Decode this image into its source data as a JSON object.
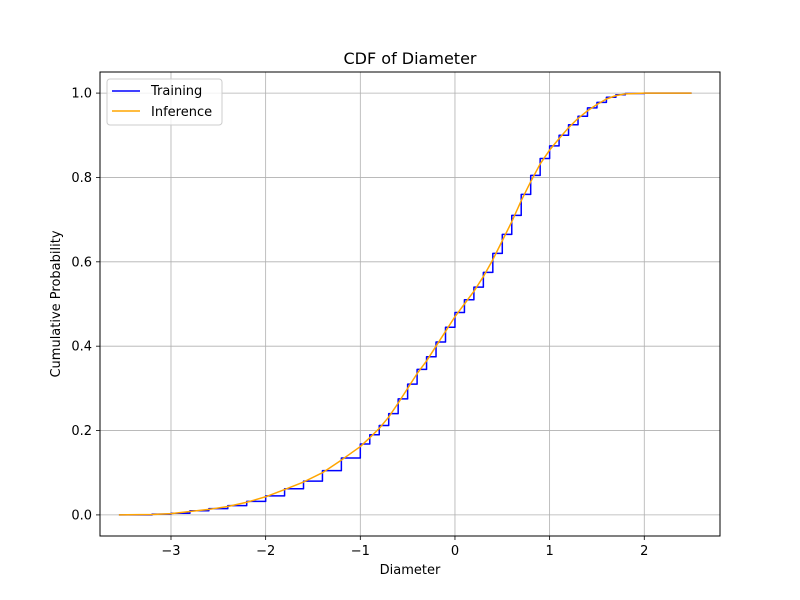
{
  "chart_data": {
    "type": "line",
    "title": "CDF of Diameter",
    "xlabel": "Diameter",
    "ylabel": "Cumulative Probability",
    "xlim": [
      -3.75,
      2.8
    ],
    "ylim": [
      -0.05,
      1.05
    ],
    "xticks": [
      -3,
      -2,
      -1,
      0,
      1,
      2
    ],
    "xtick_labels": [
      "−3",
      "−2",
      "−1",
      "0",
      "1",
      "2"
    ],
    "yticks": [
      0.0,
      0.2,
      0.4,
      0.6,
      0.8,
      1.0
    ],
    "ytick_labels": [
      "0.0",
      "0.2",
      "0.4",
      "0.6",
      "0.8",
      "1.0"
    ],
    "grid": true,
    "legend_position": "top-left",
    "series": [
      {
        "name": "Training",
        "color": "#0000ff",
        "step": true,
        "x": [
          -3.55,
          -3.2,
          -3.0,
          -2.8,
          -2.6,
          -2.4,
          -2.2,
          -2.0,
          -1.8,
          -1.6,
          -1.4,
          -1.2,
          -1.0,
          -0.9,
          -0.8,
          -0.7,
          -0.6,
          -0.5,
          -0.4,
          -0.3,
          -0.2,
          -0.1,
          0.0,
          0.1,
          0.2,
          0.3,
          0.4,
          0.5,
          0.6,
          0.7,
          0.8,
          0.9,
          1.0,
          1.1,
          1.2,
          1.3,
          1.4,
          1.5,
          1.6,
          1.7,
          1.8,
          2.0,
          2.5
        ],
        "y": [
          0.0,
          0.002,
          0.004,
          0.01,
          0.015,
          0.022,
          0.032,
          0.045,
          0.062,
          0.08,
          0.105,
          0.135,
          0.168,
          0.19,
          0.212,
          0.24,
          0.275,
          0.31,
          0.345,
          0.375,
          0.41,
          0.445,
          0.48,
          0.51,
          0.54,
          0.575,
          0.62,
          0.665,
          0.71,
          0.76,
          0.805,
          0.845,
          0.875,
          0.9,
          0.925,
          0.945,
          0.965,
          0.978,
          0.99,
          0.996,
          0.999,
          1.0,
          1.0
        ]
      },
      {
        "name": "Inference",
        "color": "#ffa500",
        "step": false,
        "x": [
          -3.55,
          -3.2,
          -3.0,
          -2.8,
          -2.6,
          -2.4,
          -2.2,
          -2.0,
          -1.8,
          -1.6,
          -1.4,
          -1.2,
          -1.0,
          -0.9,
          -0.8,
          -0.7,
          -0.6,
          -0.5,
          -0.4,
          -0.3,
          -0.2,
          -0.1,
          0.0,
          0.1,
          0.2,
          0.3,
          0.4,
          0.5,
          0.6,
          0.7,
          0.8,
          0.9,
          1.0,
          1.1,
          1.2,
          1.3,
          1.4,
          1.5,
          1.6,
          1.7,
          1.8,
          2.0,
          2.5
        ],
        "y": [
          0.0,
          0.001,
          0.003,
          0.008,
          0.013,
          0.02,
          0.03,
          0.043,
          0.06,
          0.078,
          0.1,
          0.13,
          0.162,
          0.183,
          0.205,
          0.232,
          0.265,
          0.3,
          0.335,
          0.365,
          0.4,
          0.435,
          0.47,
          0.5,
          0.53,
          0.565,
          0.605,
          0.65,
          0.695,
          0.745,
          0.79,
          0.832,
          0.865,
          0.892,
          0.918,
          0.94,
          0.958,
          0.973,
          0.986,
          0.994,
          0.998,
          1.0,
          1.0
        ]
      }
    ]
  }
}
